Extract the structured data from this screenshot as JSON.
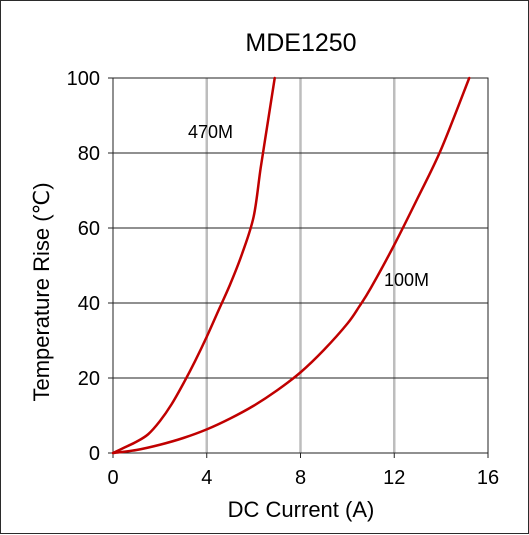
{
  "chart_data": {
    "type": "line",
    "title": "MDE1250",
    "xlabel": "DC Current (A)",
    "ylabel": "Temperature Rise (℃)",
    "xlim": [
      0,
      16
    ],
    "ylim": [
      0,
      100
    ],
    "xticks": [
      0,
      4,
      8,
      12,
      16
    ],
    "yticks": [
      0,
      20,
      40,
      60,
      80,
      100
    ],
    "xtick_labels": [
      "0",
      "4",
      "8",
      "12",
      "16"
    ],
    "ytick_labels": [
      "0",
      "20",
      "40",
      "60",
      "80",
      "100"
    ],
    "grid": true,
    "line_color": "#c00000",
    "series": [
      {
        "name": "470M",
        "x": [
          0,
          0.5,
          1.0,
          1.5,
          2.0,
          2.5,
          3.0,
          3.5,
          4.0,
          4.5,
          5.0,
          5.5,
          6.0,
          6.3,
          6.6,
          6.9
        ],
        "y": [
          0,
          1.5,
          3,
          5,
          8.5,
          13,
          18.5,
          24.5,
          31,
          38,
          45,
          53,
          63,
          76,
          88,
          100
        ]
      },
      {
        "name": "100M",
        "x": [
          0,
          1,
          2,
          3,
          4,
          5,
          6,
          7,
          8,
          9,
          10,
          10.5,
          11,
          12,
          13,
          14,
          15.2
        ],
        "y": [
          0,
          0.8,
          2.2,
          4,
          6.3,
          9.2,
          12.6,
          16.7,
          21.5,
          27.5,
          34.5,
          39,
          44,
          55.5,
          68,
          81,
          100
        ]
      }
    ]
  }
}
